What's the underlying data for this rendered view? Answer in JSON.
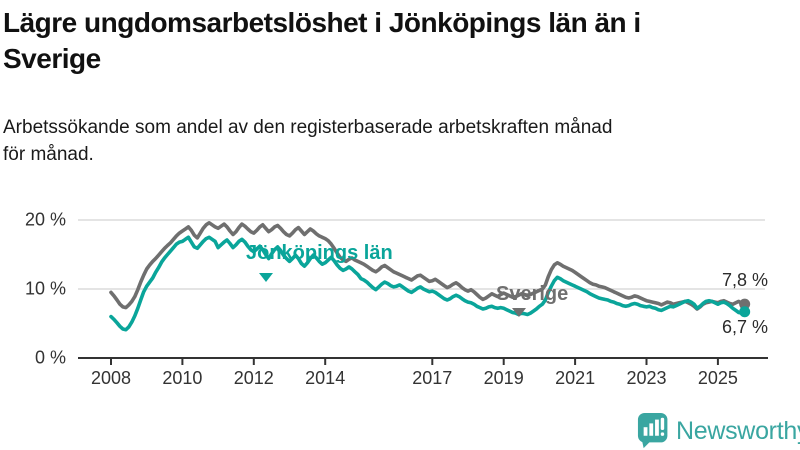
{
  "header": {
    "title_lines": [
      "Lägre ungdomsarbetslöshet i Jönköpings län än i",
      "Sverige"
    ],
    "subtitle_lines": [
      "Arbetssökande som andel av den registerbaserade arbetskraften månad",
      "för månad."
    ]
  },
  "chart_data": {
    "type": "line",
    "unit": "%",
    "start_month": "2008-01",
    "end_month": "2025-10",
    "points_per_year": 12,
    "grid": "horizontal",
    "ylim": [
      0,
      21
    ],
    "colors": {
      "grid": "#dcdcdc",
      "axis": "#333333",
      "text": "#333333"
    },
    "y_ticks": [
      {
        "label": "20 %",
        "value": 20
      },
      {
        "label": "10 %",
        "value": 10
      },
      {
        "label": "0 %",
        "value": 0
      }
    ],
    "x_ticks": [
      {
        "label": "2008",
        "year": 2008
      },
      {
        "label": "2010",
        "year": 2010
      },
      {
        "label": "2012",
        "year": 2012
      },
      {
        "label": "2014",
        "year": 2014
      },
      {
        "label": "2017",
        "year": 2017
      },
      {
        "label": "2019",
        "year": 2019
      },
      {
        "label": "2021",
        "year": 2021
      },
      {
        "label": "2023",
        "year": 2023
      },
      {
        "label": "2025",
        "year": 2025
      }
    ],
    "series": [
      {
        "name": "Sverige",
        "color": "#6f6f6f",
        "end_value_label": "7,8 %",
        "end_value": 7.8,
        "values": [
          9.5,
          9.0,
          8.4,
          7.8,
          7.4,
          7.3,
          7.7,
          8.2,
          8.9,
          9.9,
          11.0,
          12.0,
          12.9,
          13.5,
          14.0,
          14.4,
          14.9,
          15.4,
          15.9,
          16.3,
          16.7,
          17.2,
          17.7,
          18.1,
          18.4,
          18.7,
          19.0,
          18.5,
          17.8,
          17.4,
          18.1,
          18.8,
          19.3,
          19.6,
          19.3,
          19.0,
          18.8,
          19.1,
          19.4,
          19.0,
          18.4,
          17.9,
          18.3,
          18.9,
          19.4,
          19.1,
          18.7,
          18.3,
          18.1,
          18.5,
          19.0,
          19.3,
          18.8,
          18.3,
          18.6,
          19.0,
          19.2,
          18.8,
          18.3,
          17.9,
          17.7,
          18.1,
          18.6,
          18.9,
          18.4,
          17.9,
          18.3,
          18.7,
          18.4,
          18.0,
          17.7,
          17.5,
          17.3,
          17.0,
          16.5,
          15.9,
          15.2,
          14.6,
          14.2,
          14.0,
          14.3,
          14.5,
          14.2,
          14.0,
          13.8,
          13.6,
          13.3,
          13.0,
          12.7,
          12.5,
          12.8,
          13.2,
          13.4,
          13.1,
          12.8,
          12.5,
          12.3,
          12.1,
          11.9,
          11.7,
          11.5,
          11.3,
          11.6,
          11.9,
          12.0,
          11.7,
          11.4,
          11.1,
          11.2,
          11.4,
          11.1,
          10.8,
          10.5,
          10.2,
          10.4,
          10.7,
          10.9,
          10.6,
          10.2,
          9.9,
          9.7,
          9.9,
          9.6,
          9.2,
          8.8,
          8.5,
          8.7,
          9.0,
          9.3,
          9.1,
          8.9,
          9.2,
          9.4,
          9.2,
          9.0,
          8.8,
          8.9,
          9.1,
          9.3,
          9.2,
          9.0,
          9.2,
          9.4,
          9.6,
          9.8,
          10.0,
          10.6,
          11.8,
          12.8,
          13.5,
          13.8,
          13.6,
          13.3,
          13.1,
          12.9,
          12.7,
          12.4,
          12.1,
          11.8,
          11.5,
          11.2,
          10.9,
          10.7,
          10.6,
          10.4,
          10.3,
          10.2,
          10.0,
          9.8,
          9.6,
          9.4,
          9.2,
          9.0,
          8.8,
          8.7,
          8.8,
          9.0,
          8.9,
          8.7,
          8.5,
          8.3,
          8.2,
          8.1,
          8.0,
          7.9,
          7.7,
          7.9,
          8.1,
          8.0,
          7.8,
          7.9,
          8.0,
          8.1,
          8.2,
          8.0,
          7.8,
          7.5,
          7.1,
          7.4,
          7.8,
          8.0,
          8.1,
          8.2,
          8.1,
          8.0,
          8.2,
          8.3,
          8.1,
          7.9,
          7.8,
          8.0,
          8.2,
          7.9,
          7.8
        ]
      },
      {
        "name": "Jönköpings län",
        "color": "#0aa59a",
        "end_value_label": "6,7 %",
        "end_value": 6.7,
        "values": [
          6.0,
          5.6,
          5.1,
          4.6,
          4.2,
          4.1,
          4.5,
          5.2,
          6.1,
          7.2,
          8.4,
          9.6,
          10.4,
          11.0,
          11.6,
          12.4,
          13.1,
          13.9,
          14.5,
          15.0,
          15.5,
          16.0,
          16.5,
          16.8,
          16.9,
          17.2,
          17.5,
          16.8,
          16.1,
          15.9,
          16.4,
          16.9,
          17.3,
          17.5,
          17.2,
          16.9,
          16.0,
          16.4,
          16.8,
          17.1,
          16.6,
          16.0,
          16.4,
          16.9,
          17.2,
          16.8,
          16.2,
          15.7,
          15.4,
          15.8,
          16.2,
          15.7,
          15.0,
          14.4,
          15.1,
          15.7,
          16.1,
          15.6,
          14.9,
          14.4,
          14.0,
          14.4,
          14.9,
          14.4,
          13.7,
          13.3,
          13.8,
          14.4,
          14.9,
          14.5,
          14.0,
          13.6,
          13.8,
          14.2,
          14.6,
          14.1,
          13.5,
          13.0,
          12.7,
          12.9,
          13.2,
          12.9,
          12.5,
          12.1,
          11.5,
          11.3,
          11.0,
          10.6,
          10.2,
          9.9,
          10.3,
          10.7,
          11.0,
          10.8,
          10.5,
          10.3,
          10.4,
          10.6,
          10.3,
          10.0,
          9.7,
          9.5,
          9.8,
          10.1,
          10.3,
          10.0,
          9.8,
          9.6,
          9.7,
          9.5,
          9.2,
          8.9,
          8.6,
          8.4,
          8.6,
          8.9,
          9.1,
          8.9,
          8.6,
          8.3,
          8.1,
          8.0,
          7.8,
          7.5,
          7.3,
          7.1,
          7.2,
          7.4,
          7.5,
          7.3,
          7.2,
          7.3,
          7.2,
          7.0,
          6.8,
          6.6,
          6.5,
          6.3,
          6.5,
          6.4,
          6.3,
          6.5,
          6.8,
          7.1,
          7.5,
          7.8,
          8.4,
          9.5,
          10.4,
          11.2,
          11.7,
          11.5,
          11.2,
          11.0,
          10.8,
          10.6,
          10.4,
          10.2,
          10.0,
          9.8,
          9.6,
          9.3,
          9.1,
          8.9,
          8.7,
          8.6,
          8.5,
          8.4,
          8.2,
          8.1,
          7.9,
          7.8,
          7.6,
          7.5,
          7.6,
          7.8,
          7.9,
          7.8,
          7.6,
          7.5,
          7.4,
          7.5,
          7.3,
          7.2,
          7.0,
          6.9,
          7.1,
          7.3,
          7.5,
          7.4,
          7.6,
          7.8,
          8.0,
          8.2,
          8.3,
          8.1,
          7.8,
          7.2,
          7.5,
          7.9,
          8.2,
          8.3,
          8.2,
          8.0,
          7.8,
          8.0,
          8.1,
          7.9,
          7.6,
          7.2,
          6.9,
          6.6,
          6.5,
          6.7
        ]
      }
    ]
  },
  "branding": {
    "logo_text": "Newsworthy",
    "logo_color": "#3aa6a1"
  }
}
